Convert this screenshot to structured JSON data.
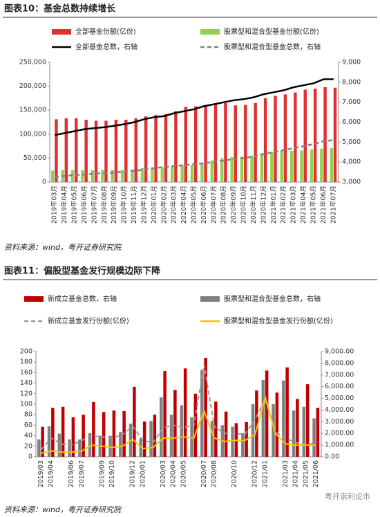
{
  "chart_data": [
    {
      "type": "bar",
      "title": "图表10：基金总数持续增长",
      "categories": [
        "2019年03月",
        "2019年04月",
        "2019年05月",
        "2019年06月",
        "2019年07月",
        "2019年08月",
        "2019年09月",
        "2019年10月",
        "2019年11月",
        "2019年12月",
        "2020年01月",
        "2020年02月",
        "2020年03月",
        "2020年04月",
        "2020年05月",
        "2020年06月",
        "2020年07月",
        "2020年08月",
        "2020年09月",
        "2020年10月",
        "2020年11月",
        "2020年12月",
        "2021年01月",
        "2021年02月",
        "2021年03月",
        "2021年04月",
        "2021年05月",
        "2021年06月",
        "2021年07月"
      ],
      "series": [
        {
          "name": "全部基金份额(亿份)",
          "type": "bar",
          "color": "#e03030",
          "values": [
            131000,
            133000,
            133000,
            130000,
            128000,
            128000,
            130000,
            130000,
            133000,
            137000,
            140000,
            142000,
            148000,
            157000,
            158000,
            160000,
            163000,
            165000,
            160000,
            161000,
            165000,
            175000,
            180000,
            183000,
            187000,
            193000,
            195000,
            198000,
            197000
          ]
        },
        {
          "name": "股票型和混合型基金份额(亿份)",
          "type": "bar",
          "color": "#92d050",
          "values": [
            24000,
            25000,
            25000,
            25000,
            25000,
            25000,
            25000,
            25000,
            26000,
            29000,
            30000,
            31000,
            33000,
            35000,
            36000,
            39000,
            45000,
            50000,
            52000,
            53000,
            55000,
            60000,
            63000,
            65000,
            65000,
            66000,
            68000,
            70000,
            71000
          ]
        },
        {
          "name": "全部基金总数，右轴",
          "type": "line",
          "axis": "y2",
          "color": "#000000",
          "values": [
            5350,
            5450,
            5550,
            5650,
            5700,
            5750,
            5820,
            5900,
            6000,
            6150,
            6250,
            6300,
            6450,
            6550,
            6650,
            6800,
            6900,
            7000,
            7100,
            7150,
            7250,
            7400,
            7500,
            7600,
            7750,
            7850,
            7950,
            8150,
            8150
          ]
        },
        {
          "name": "股票型和混合型基金总数，右轴",
          "type": "line",
          "axis": "y2",
          "dashed": true,
          "color": "#808080",
          "values": [
            3250,
            3300,
            3350,
            3380,
            3420,
            3450,
            3480,
            3520,
            3560,
            3620,
            3700,
            3750,
            3800,
            3850,
            3900,
            3950,
            4000,
            4080,
            4150,
            4200,
            4280,
            4400,
            4500,
            4600,
            4700,
            4800,
            4900,
            5050,
            5100
          ]
        }
      ],
      "ylim": [
        0,
        250000
      ],
      "yticks": [
        0,
        {
          "value": 50000,
          "label": "50,000"
        },
        {
          "value": 100000,
          "label": "100,000"
        },
        {
          "value": 150000,
          "label": "150,000"
        },
        {
          "value": 200000,
          "label": "200,000"
        },
        {
          "value": 250000,
          "label": "250,000"
        }
      ],
      "y2lim": [
        3000,
        9000
      ],
      "y2ticks": [
        {
          "value": 3000,
          "label": "3,000"
        },
        {
          "value": 4000,
          "label": "4,000"
        },
        {
          "value": 5000,
          "label": "5,000"
        },
        {
          "value": 6000,
          "label": "6,000"
        },
        {
          "value": 7000,
          "label": "7,000"
        },
        {
          "value": 8000,
          "label": "8,000"
        },
        {
          "value": 9000,
          "label": "9,000"
        }
      ],
      "grid": false
    },
    {
      "type": "bar",
      "title": "图表11：偏股型基金发行规模边际下降",
      "categories": [
        "2019/03",
        "2019/04",
        null,
        "2019/06",
        "2019/07",
        null,
        "2019/09",
        "2019/10",
        null,
        "2019/12",
        "2020/01",
        null,
        "2020/03",
        "2020/04",
        "2020/05",
        null,
        "2020/07",
        "2020/08",
        null,
        "2020/10",
        null,
        "2020/12",
        "2021/01",
        null,
        "2021/03",
        "2021/04",
        "2021/05",
        "2021/06"
      ],
      "series": [
        {
          "name": "新成立基金总数，右轴",
          "type": "bar",
          "color": "#c00000",
          "values": [
            57,
            93,
            95,
            75,
            80,
            104,
            85,
            88,
            87,
            133,
            67,
            80,
            163,
            127,
            168,
            120,
            188,
            105,
            86,
            64,
            66,
            126,
            164,
            122,
            170,
            110,
            138,
            93
          ]
        },
        {
          "name": "股票型和混合型基金总数，右轴",
          "type": "bar",
          "color": "#808080",
          "values": [
            33,
            58,
            44,
            33,
            33,
            45,
            40,
            40,
            47,
            63,
            35,
            68,
            113,
            80,
            98,
            75,
            165,
            68,
            60,
            57,
            45,
            100,
            146,
            100,
            145,
            88,
            95,
            73
          ]
        },
        {
          "name": "新成立基金发行份额(亿份)",
          "type": "line",
          "axis": "y2",
          "dashed": true,
          "color": "#999999",
          "values": [
            600,
            1600,
            1100,
            1000,
            1400,
            1800,
            1700,
            1600,
            1900,
            2600,
            1400,
            1200,
            2500,
            2700,
            2500,
            2700,
            7900,
            2600,
            2000,
            2000,
            1900,
            3200,
            4900,
            2100,
            1600,
            1200,
            1100,
            1100
          ]
        },
        {
          "name": "股票型和混合型基金发行份额(亿份)",
          "type": "line",
          "axis": "y2",
          "color": "#ffc000",
          "values": [
            300,
            500,
            400,
            400,
            500,
            1000,
            900,
            800,
            900,
            1500,
            700,
            800,
            1600,
            1600,
            1700,
            1600,
            3900,
            1600,
            1300,
            1400,
            1400,
            1900,
            5100,
            2000,
            1100,
            1000,
            1000,
            1000
          ]
        }
      ],
      "ylim": [
        0,
        200
      ],
      "yticks": [
        0,
        20,
        40,
        60,
        80,
        100,
        120,
        140,
        160,
        180,
        200
      ],
      "y2lim": [
        0,
        9000
      ],
      "y2ticks": [
        {
          "value": 0,
          "label": "0.00"
        },
        {
          "value": 1000,
          "label": "1,000.00"
        },
        {
          "value": 2000,
          "label": "2,000.00"
        },
        {
          "value": 3000,
          "label": "3,000.00"
        },
        {
          "value": 4000,
          "label": "4,000.00"
        },
        {
          "value": 5000,
          "label": "5,000.00"
        },
        {
          "value": 6000,
          "label": "6,000.00"
        },
        {
          "value": 7000,
          "label": "7,000.00"
        },
        {
          "value": 8000,
          "label": "8,000.00"
        },
        {
          "value": 9000,
          "label": "9,000.00"
        }
      ],
      "grid": false
    }
  ],
  "sources": [
    "资料来源：wind，粤开证券研究院",
    "资料来源：wind，粤开证券研究院"
  ],
  "watermark": "粤开崇利论市"
}
